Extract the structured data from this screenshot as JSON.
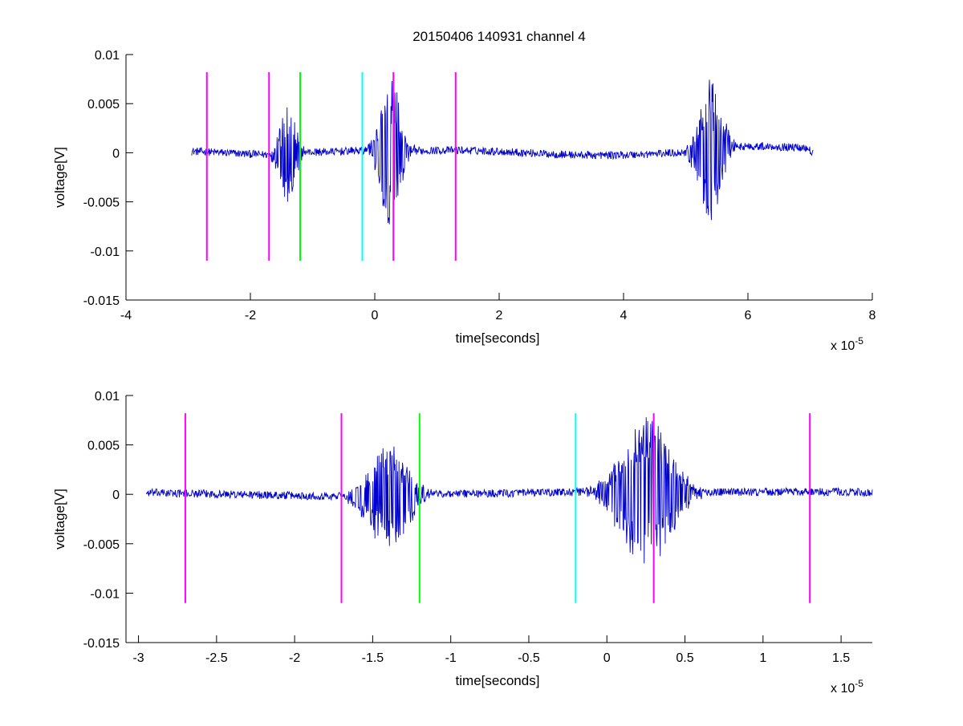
{
  "chart_data": [
    {
      "type": "line",
      "title": "20150406 140931 channel 4",
      "xlabel": "time[seconds]",
      "ylabel": "voltage[V]",
      "x_exponent_label": "x 10",
      "x_exponent_sup": "-5",
      "xlim": [
        -4,
        8
      ],
      "ylim": [
        -0.015,
        0.01
      ],
      "xticks": [
        -4,
        -2,
        0,
        2,
        4,
        6,
        8
      ],
      "xtick_labels": [
        "-4",
        "-2",
        "0",
        "2",
        "4",
        "6",
        "8"
      ],
      "yticks": [
        -0.015,
        -0.01,
        -0.005,
        0,
        0.005,
        0.01
      ],
      "ytick_labels": [
        "-0.015",
        "-0.01",
        "-0.005",
        "0",
        "0.005",
        "0.01"
      ],
      "signal": {
        "color": "#0000cc",
        "x_start": -2.95,
        "x_end": 7.05,
        "noise_amplitude": 0.0004,
        "bursts": [
          {
            "x": -1.4,
            "width": 0.25,
            "amplitude": 0.005
          },
          {
            "x": 0.25,
            "width": 0.3,
            "amplitude": 0.008
          },
          {
            "x": 5.4,
            "width": 0.35,
            "amplitude": 0.007
          }
        ]
      },
      "markers": [
        {
          "x": -2.7,
          "color": "#ff00ff",
          "y_bottom": -0.011,
          "y_top": 0.0082
        },
        {
          "x": -1.7,
          "color": "#ff00ff",
          "y_bottom": -0.011,
          "y_top": 0.0082
        },
        {
          "x": -1.2,
          "color": "#00ff00",
          "y_bottom": -0.011,
          "y_top": 0.0082
        },
        {
          "x": -0.2,
          "color": "#00ffff",
          "y_bottom": -0.011,
          "y_top": 0.0082
        },
        {
          "x": 0.3,
          "color": "#ff00ff",
          "y_bottom": -0.011,
          "y_top": 0.0082
        },
        {
          "x": 1.3,
          "color": "#ff00ff",
          "y_bottom": -0.011,
          "y_top": 0.0082
        }
      ],
      "grid": false
    },
    {
      "type": "line",
      "title": "",
      "xlabel": "time[seconds]",
      "ylabel": "voltage[V]",
      "x_exponent_label": "x 10",
      "x_exponent_sup": "-5",
      "xlim": [
        -3.08,
        1.7
      ],
      "ylim": [
        -0.015,
        0.01
      ],
      "xticks": [
        -3,
        -2.5,
        -2,
        -1.5,
        -1,
        -0.5,
        0,
        0.5,
        1,
        1.5
      ],
      "xtick_labels": [
        "-3",
        "-2.5",
        "-2",
        "-1.5",
        "-1",
        "-0.5",
        "0",
        "0.5",
        "1",
        "1.5"
      ],
      "yticks": [
        -0.015,
        -0.01,
        -0.005,
        0,
        0.005,
        0.01
      ],
      "ytick_labels": [
        "-0.015",
        "-0.01",
        "-0.005",
        "0",
        "0.005",
        "0.01"
      ],
      "signal": {
        "color": "#0000cc",
        "x_start": -2.95,
        "x_end": 1.7,
        "noise_amplitude": 0.0004,
        "bursts": [
          {
            "x": -1.4,
            "width": 0.25,
            "amplitude": 0.005
          },
          {
            "x": 0.25,
            "width": 0.3,
            "amplitude": 0.008
          }
        ]
      },
      "markers": [
        {
          "x": -2.7,
          "color": "#ff00ff",
          "y_bottom": -0.011,
          "y_top": 0.0082
        },
        {
          "x": -1.7,
          "color": "#ff00ff",
          "y_bottom": -0.011,
          "y_top": 0.0082
        },
        {
          "x": -1.2,
          "color": "#00ff00",
          "y_bottom": -0.011,
          "y_top": 0.0082
        },
        {
          "x": -0.2,
          "color": "#00ffff",
          "y_bottom": -0.011,
          "y_top": 0.0082
        },
        {
          "x": 0.3,
          "color": "#ff00ff",
          "y_bottom": -0.011,
          "y_top": 0.0082
        },
        {
          "x": 1.3,
          "color": "#ff00ff",
          "y_bottom": -0.011,
          "y_top": 0.0082
        }
      ],
      "grid": false
    }
  ]
}
